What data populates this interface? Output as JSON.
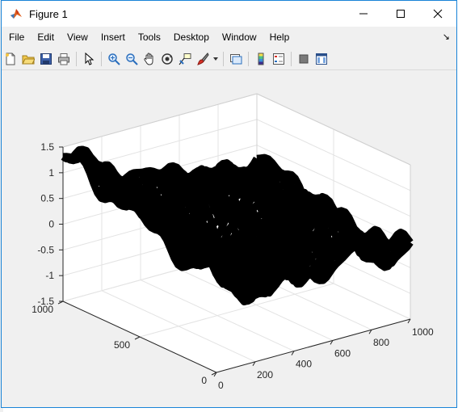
{
  "window": {
    "title": "Figure 1",
    "icon": "matlab-logo-icon",
    "controls": [
      "minimize-icon",
      "maximize-icon",
      "close-icon"
    ]
  },
  "menu": {
    "items": [
      "File",
      "Edit",
      "View",
      "Insert",
      "Tools",
      "Desktop",
      "Window",
      "Help"
    ],
    "overflow_icon": "dock-arrow-icon"
  },
  "toolbar": {
    "buttons": [
      "new-figure-icon",
      "open-file-icon",
      "save-icon",
      "print-icon",
      "edit-plot-arrow-icon",
      "zoom-in-icon",
      "zoom-out-icon",
      "pan-hand-icon",
      "rotate-3d-icon",
      "data-cursor-icon",
      "brush-icon",
      "link-plot-icon",
      "colorbar-icon",
      "legend-icon",
      "hide-plot-tools-icon",
      "show-plot-tools-icon"
    ]
  },
  "chart_data": {
    "type": "surface",
    "title": "",
    "xlabel": "",
    "ylabel": "",
    "zlabel": "",
    "xlim": [
      0,
      1000
    ],
    "ylim": [
      0,
      1000
    ],
    "zlim": [
      -1.5,
      1.5
    ],
    "x_ticks": [
      "0",
      "200",
      "400",
      "600",
      "800",
      "1000"
    ],
    "y_ticks": [
      "0",
      "500",
      "1000"
    ],
    "z_ticks": [
      "-1.5",
      "-1",
      "-0.5",
      "0",
      "0.5",
      "1",
      "1.5"
    ],
    "grid": true,
    "surface_color": "#000000"
  }
}
